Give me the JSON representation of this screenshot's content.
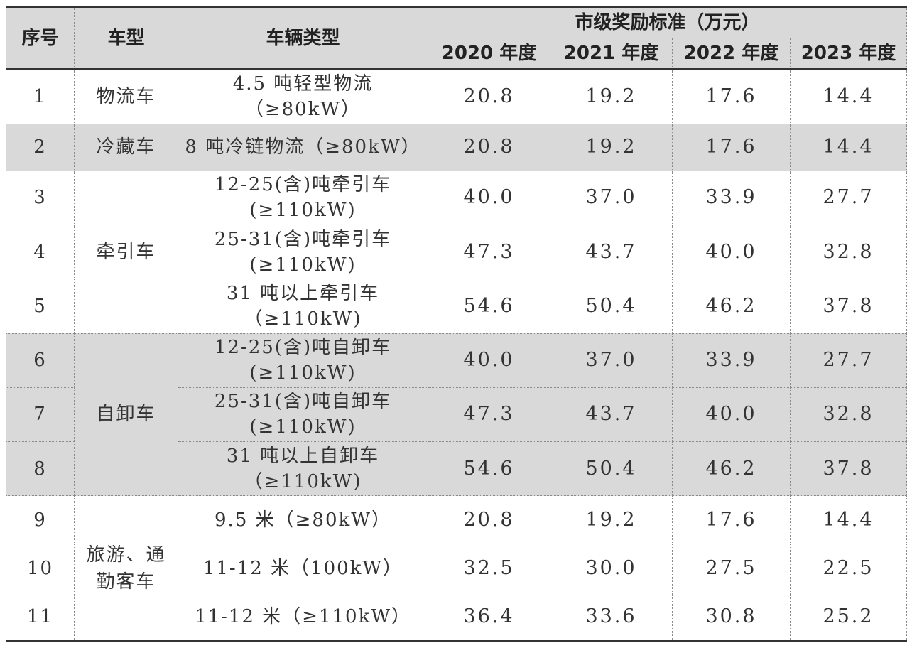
{
  "headers": {
    "seq": "序号",
    "model": "车型",
    "vehicle_type": "车辆类型",
    "standard": "市级奖励标准（万元）",
    "years": [
      "2020 年度",
      "2021 年度",
      "2022 年度",
      "2023 年度"
    ]
  },
  "groups": {
    "logistics": "物流车",
    "refrigerated": "冷藏车",
    "tractor": "牵引车",
    "dump": "自卸车",
    "bus": "旅游、通勤客车"
  },
  "rows": [
    {
      "no": "1",
      "type": "4.5 吨轻型物流（≥80kW）",
      "v2020": "20.8",
      "v2021": "19.2",
      "v2022": "17.6",
      "v2023": "14.4"
    },
    {
      "no": "2",
      "type": "8 吨冷链物流（≥80kW）",
      "v2020": "20.8",
      "v2021": "19.2",
      "v2022": "17.6",
      "v2023": "14.4"
    },
    {
      "no": "3",
      "type": "12-25(含)吨牵引车(≥110kW)",
      "v2020": "40.0",
      "v2021": "37.0",
      "v2022": "33.9",
      "v2023": "27.7"
    },
    {
      "no": "4",
      "type": "25-31(含)吨牵引车(≥110kW)",
      "v2020": "47.3",
      "v2021": "43.7",
      "v2022": "40.0",
      "v2023": "32.8"
    },
    {
      "no": "5",
      "type": "31 吨以上牵引车（≥110kW)",
      "v2020": "54.6",
      "v2021": "50.4",
      "v2022": "46.2",
      "v2023": "37.8"
    },
    {
      "no": "6",
      "type": "12-25(含)吨自卸车(≥110kW)",
      "v2020": "40.0",
      "v2021": "37.0",
      "v2022": "33.9",
      "v2023": "27.7"
    },
    {
      "no": "7",
      "type": "25-31(含)吨自卸车(≥110kW)",
      "v2020": "47.3",
      "v2021": "43.7",
      "v2022": "40.0",
      "v2023": "32.8"
    },
    {
      "no": "8",
      "type": "31 吨以上自卸车（≥110kW)",
      "v2020": "54.6",
      "v2021": "50.4",
      "v2022": "46.2",
      "v2023": "37.8"
    },
    {
      "no": "9",
      "type": "9.5 米（≥80kW）",
      "v2020": "20.8",
      "v2021": "19.2",
      "v2022": "17.6",
      "v2023": "14.4"
    },
    {
      "no": "10",
      "type": "11-12 米（100kW）",
      "v2020": "32.5",
      "v2021": "30.0",
      "v2022": "27.5",
      "v2023": "22.5"
    },
    {
      "no": "11",
      "type": "11-12 米（≥110kW）",
      "v2020": "36.4",
      "v2021": "33.6",
      "v2022": "30.8",
      "v2023": "25.2"
    }
  ]
}
